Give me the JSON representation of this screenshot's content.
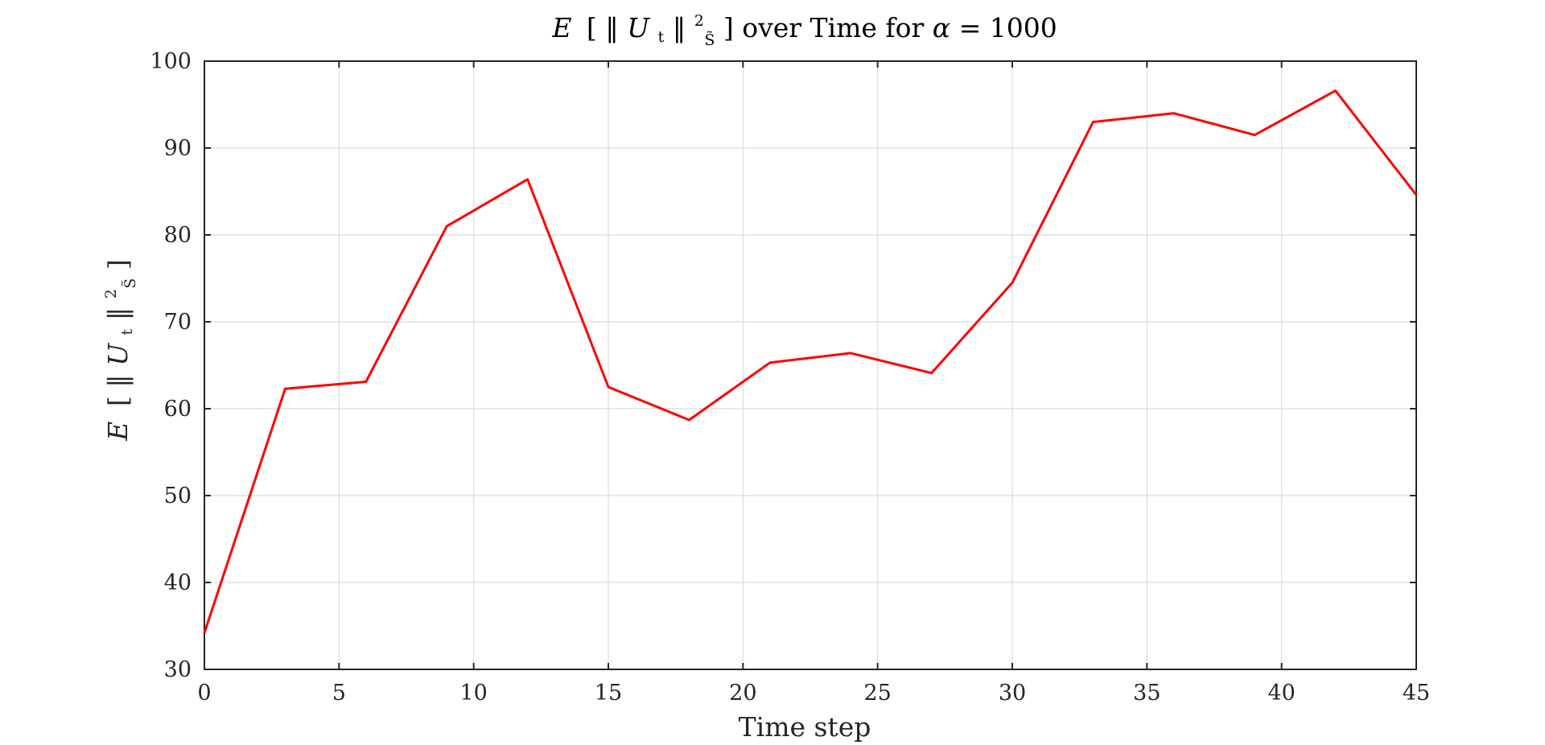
{
  "chart_data": {
    "type": "line",
    "title": {
      "prefix": "E",
      "norm_var": "U",
      "norm_sub": "t",
      "norm_sup": "2",
      "norm_space": "S̃",
      "suffix": " over Time for ",
      "param_symbol": "α",
      "param_eq": " = ",
      "param_value": "1000"
    },
    "xlabel": "Time step",
    "ylabel": {
      "prefix": "E",
      "norm_var": "U",
      "norm_sub": "t",
      "norm_sup": "2",
      "norm_space": "S̃"
    },
    "xlim": [
      0,
      45
    ],
    "ylim": [
      30,
      100
    ],
    "xticks": [
      0,
      5,
      10,
      15,
      20,
      25,
      30,
      35,
      40,
      45
    ],
    "yticks": [
      30,
      40,
      50,
      60,
      70,
      80,
      90,
      100
    ],
    "grid": true,
    "series": [
      {
        "color": "#ff0000",
        "x": [
          0,
          3,
          6,
          9,
          12,
          15,
          18,
          21,
          24,
          27,
          30,
          33,
          36,
          39,
          42,
          45
        ],
        "y": [
          34.2,
          62.3,
          63.1,
          81.0,
          86.4,
          62.5,
          58.7,
          65.3,
          66.4,
          64.1,
          74.5,
          93.0,
          94.0,
          91.5,
          96.6,
          84.6
        ]
      }
    ]
  }
}
